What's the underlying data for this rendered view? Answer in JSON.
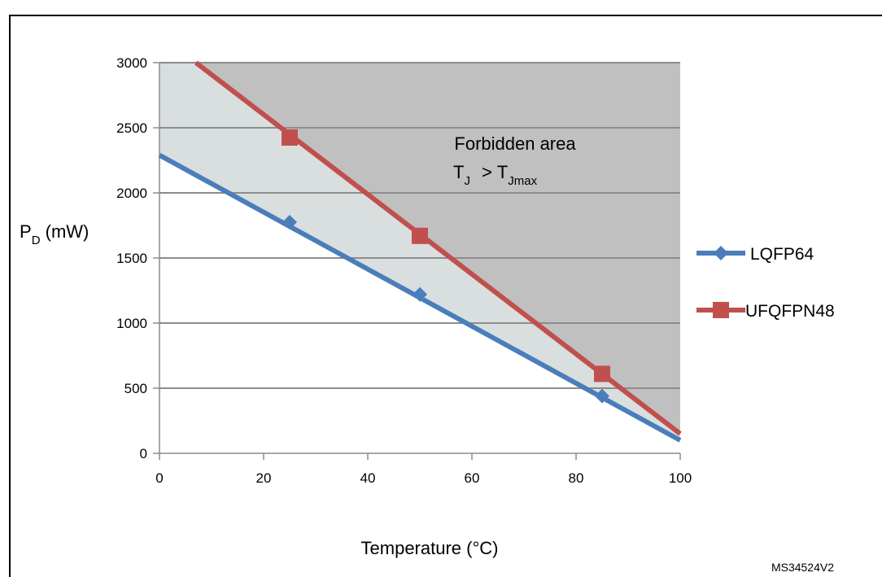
{
  "chart_data": {
    "type": "line",
    "title": "",
    "xlabel": "Temperature (°C)",
    "ylabel": {
      "main": "P",
      "sub": "D",
      "unit": " (mW)"
    },
    "xlim": [
      0,
      100
    ],
    "ylim": [
      0,
      3000
    ],
    "x_ticks": [
      0,
      20,
      40,
      60,
      80,
      100
    ],
    "y_ticks": [
      0,
      500,
      1000,
      1500,
      2000,
      2500,
      3000
    ],
    "grid": true,
    "legend_position": "right",
    "series": [
      {
        "name": "LQFP64",
        "color": "#4a7ebb",
        "marker": "diamond",
        "line": [
          [
            0,
            2290
          ],
          [
            100,
            100
          ]
        ],
        "markers": [
          [
            25,
            1775
          ],
          [
            50,
            1220
          ],
          [
            85,
            440
          ]
        ]
      },
      {
        "name": "UFQFPN48",
        "color": "#c0504d",
        "marker": "square",
        "line": [
          [
            7,
            3000
          ],
          [
            100,
            150
          ]
        ],
        "markers": [
          [
            25,
            2425
          ],
          [
            50,
            1670
          ],
          [
            85,
            610
          ]
        ]
      }
    ],
    "annotation": {
      "line1": "Forbidden area",
      "tj": "T",
      "tj_sub": "J",
      "gt": ">",
      "tjmax": "T",
      "tjmax_sub": "Jmax",
      "region_color": "#c0c0c0",
      "safe_region_color": "#d9dedf"
    },
    "reference": "MS34524V2"
  }
}
